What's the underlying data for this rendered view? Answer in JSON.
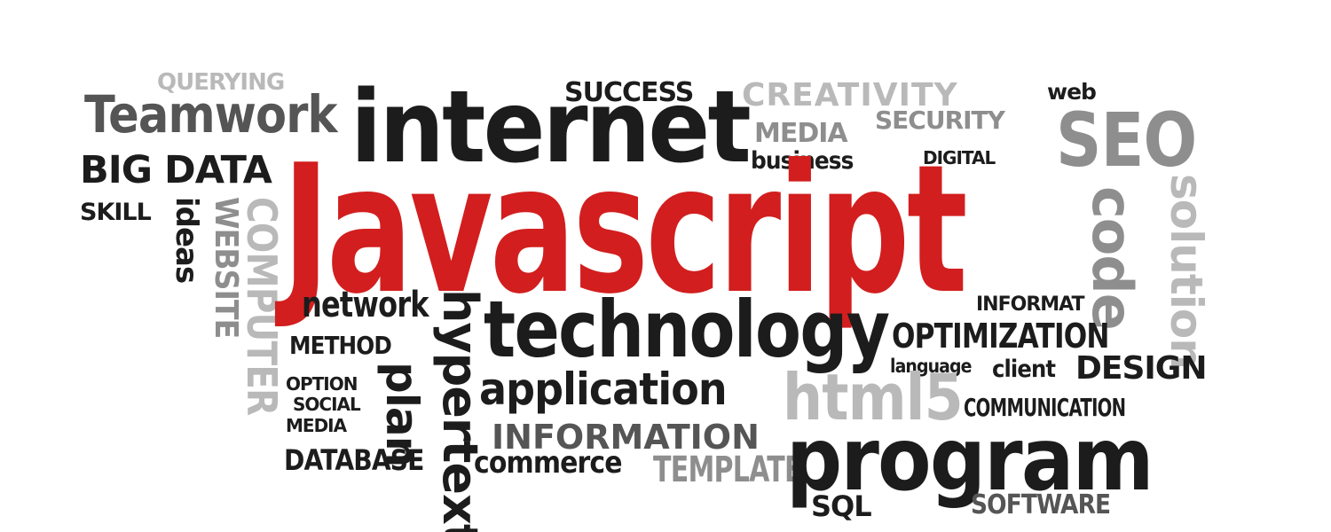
{
  "words": {
    "querying": "QUERYING",
    "teamwork": "Teamwork",
    "big_data": "BIG DATA",
    "skill": "SKILL",
    "ideas": "ideas",
    "website": "WEBSITE",
    "computer": "COMPUTER",
    "internet": "internet",
    "success": "SUCCESS",
    "creativity": "CREATIVITY",
    "web": "web",
    "media_top": "MEDIA",
    "security": "SECURITY",
    "business": "business",
    "digital": "DIGITAL",
    "seo": "SEO",
    "javascript": "Javascript",
    "code": "code",
    "solution": "solution",
    "network": "network",
    "method": "METHOD",
    "option": "OPTION",
    "social": "SOCIAL",
    "media_bottom": "MEDIA",
    "database": "DATABASE",
    "plan": "plan",
    "hypertext": "hypertext",
    "technology": "technology",
    "informat": "INFORMAT",
    "optimization": "OPTIMIZATION",
    "language": "language",
    "client": "client",
    "design": "DESIGN",
    "application": "application",
    "html5": "html5",
    "communication": "COMMUNICATION",
    "information": "INFORMATION",
    "commerce": "commerce",
    "template": "TEMPLATE",
    "program": "program",
    "sql": "SQL",
    "software": "SOFTWARE"
  },
  "colors": {
    "accent_red": "#d21e1e",
    "dark": "#1c1c1c",
    "mid_grey": "#555555",
    "grey": "#8e8e8e",
    "light_grey": "#b9b9b9",
    "background": "#ffffff"
  }
}
